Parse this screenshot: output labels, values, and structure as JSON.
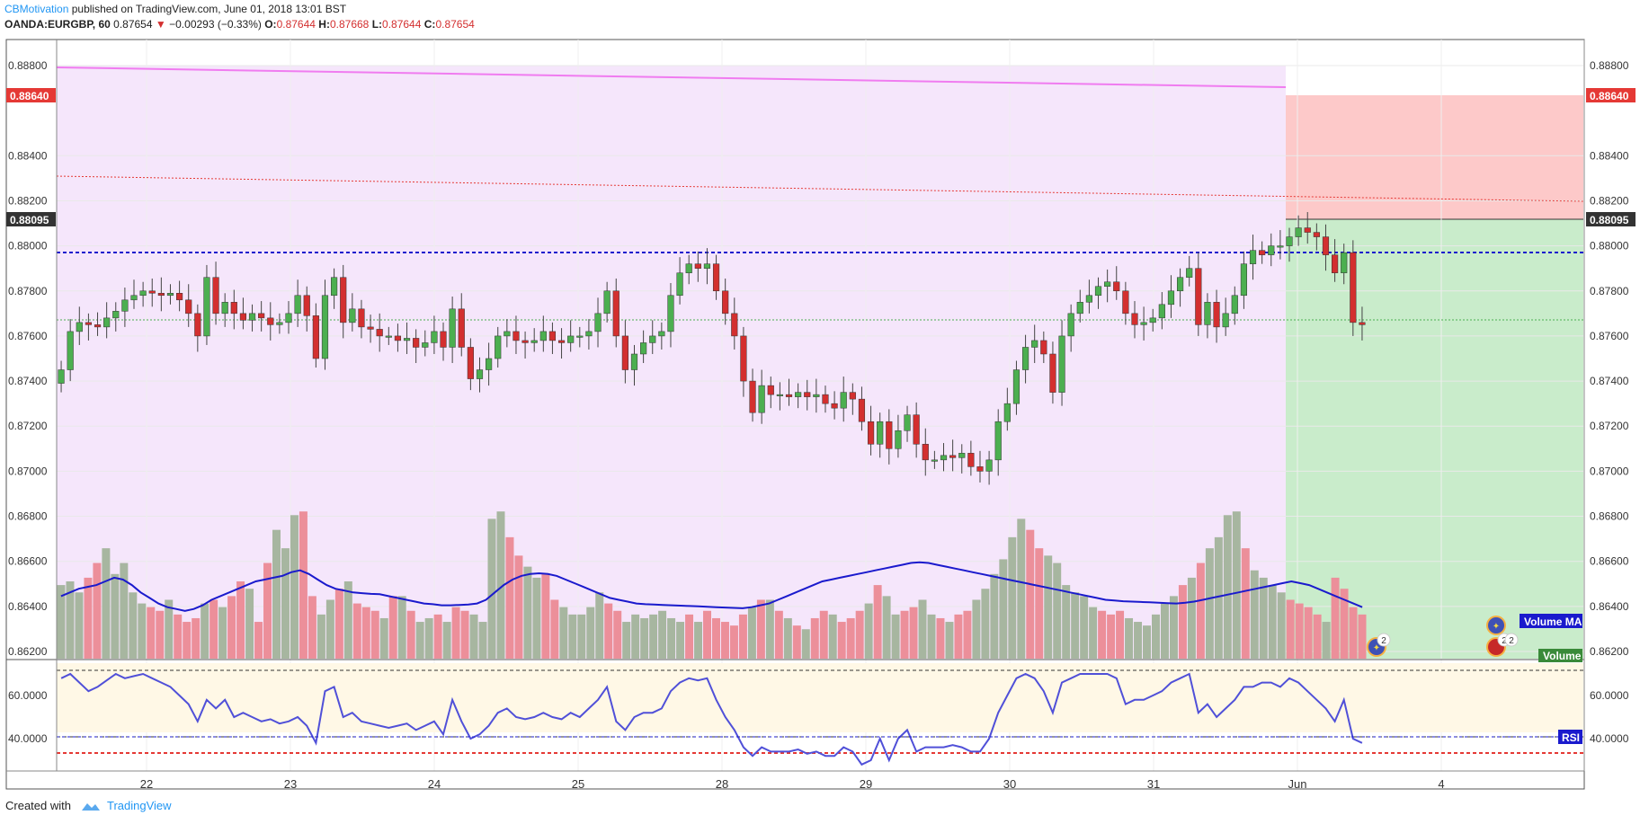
{
  "header": {
    "publisher": "CBMotivation",
    "published_text": "published on TradingView.com, June 01, 2018 13:01 BST",
    "symbol": "OANDA:EURGBP, 60",
    "last": "0.87654",
    "change": "−0.00293 (−0.33%)",
    "o_label": "O:",
    "o": "0.87644",
    "h_label": "H:",
    "h": "0.87668",
    "l_label": "L:",
    "l": "0.87644",
    "c_label": "C:",
    "c": "0.87654"
  },
  "price_tags": {
    "stop": "0.88640",
    "entry": "0.88095"
  },
  "indicator_labels": {
    "volume_ma": "Volume MA",
    "volume": "Volume",
    "rsi": "RSI"
  },
  "event_badges": [
    "2",
    "2",
    "2"
  ],
  "footer": {
    "created_with": "Created with",
    "brand": "TradingView"
  },
  "colors": {
    "up": "#4caf50",
    "down": "#d32f2f",
    "ma": "#1a1acd",
    "rsi": "#5050d8",
    "zone": "#f5e6fb",
    "stop": "#fdc9c9",
    "target": "#c9eccb"
  },
  "chart_data": [
    {
      "type": "candlestick",
      "symbol": "OANDA:EURGBP",
      "interval": "60",
      "x_ticks": [
        "22",
        "23",
        "24",
        "25",
        "28",
        "29",
        "30",
        "31",
        "Jun",
        "4"
      ],
      "y_ticks": [
        "0.86200",
        "0.86400",
        "0.86600",
        "0.86800",
        "0.87000",
        "0.87200",
        "0.87400",
        "0.87600",
        "0.87800",
        "0.88000",
        "0.88200",
        "0.88400",
        "0.88640",
        "0.88800"
      ],
      "ylim": [
        0.8615,
        0.8892
      ],
      "session_index_of_tick": [
        4,
        14,
        24,
        34,
        44,
        54,
        64,
        74,
        84,
        94
      ],
      "closes": [
        0.8745,
        0.8762,
        0.8766,
        0.8765,
        0.8764,
        0.8768,
        0.8771,
        0.8776,
        0.8778,
        0.878,
        0.8779,
        0.8778,
        0.8779,
        0.8776,
        0.877,
        0.876,
        0.8786,
        0.877,
        0.8775,
        0.877,
        0.8767,
        0.877,
        0.8768,
        0.8765,
        0.8766,
        0.877,
        0.8778,
        0.8769,
        0.875,
        0.8778,
        0.8786,
        0.8766,
        0.8772,
        0.8764,
        0.8763,
        0.876,
        0.876,
        0.8758,
        0.8759,
        0.8755,
        0.8757,
        0.8762,
        0.8755,
        0.8772,
        0.8755,
        0.8741,
        0.8745,
        0.875,
        0.876,
        0.8762,
        0.8758,
        0.8757,
        0.8758,
        0.8762,
        0.8758,
        0.8757,
        0.876,
        0.876,
        0.8762,
        0.877,
        0.878,
        0.876,
        0.8745,
        0.8752,
        0.8757,
        0.876,
        0.8762,
        0.8778,
        0.8788,
        0.8792,
        0.879,
        0.8792,
        0.878,
        0.877,
        0.876,
        0.874,
        0.8726,
        0.8738,
        0.8734,
        0.8734,
        0.8733,
        0.8735,
        0.8733,
        0.8734,
        0.873,
        0.8728,
        0.8735,
        0.8732,
        0.8722,
        0.8712,
        0.8722,
        0.871,
        0.8718,
        0.8725,
        0.8712,
        0.8705,
        0.8705,
        0.8707,
        0.8706,
        0.8708,
        0.8702,
        0.87,
        0.8705,
        0.8722,
        0.873,
        0.8745,
        0.8755,
        0.8758,
        0.8752,
        0.8735,
        0.876,
        0.877,
        0.8775,
        0.8778,
        0.8782,
        0.8784,
        0.878,
        0.877,
        0.8765,
        0.8766,
        0.8768,
        0.8774,
        0.878,
        0.8786,
        0.879,
        0.8765,
        0.8775,
        0.8764,
        0.877,
        0.8778,
        0.8792,
        0.8798,
        0.8796,
        0.88,
        0.88,
        0.8804,
        0.8808,
        0.8806,
        0.8804,
        0.8796,
        0.8788,
        0.8797,
        0.8766,
        0.8765
      ]
    },
    {
      "type": "bar",
      "name": "Volume",
      "values": [
        200,
        210,
        180,
        220,
        260,
        300,
        230,
        260,
        180,
        150,
        140,
        130,
        160,
        120,
        100,
        110,
        150,
        160,
        140,
        170,
        210,
        190,
        100,
        260,
        350,
        300,
        390,
        400,
        170,
        120,
        160,
        190,
        210,
        150,
        140,
        130,
        110,
        170,
        170,
        130,
        100,
        110,
        120,
        100,
        140,
        130,
        120,
        100,
        380,
        400,
        330,
        280,
        250,
        220,
        230,
        160,
        140,
        120,
        120,
        140,
        180,
        150,
        130,
        100,
        120,
        110,
        120,
        130,
        110,
        100,
        120,
        100,
        130,
        110,
        100,
        90,
        120,
        140,
        160,
        160,
        130,
        110,
        90,
        80,
        110,
        130,
        120,
        100,
        110,
        130,
        150,
        200,
        170,
        120,
        130,
        140,
        160,
        120,
        110,
        100,
        120,
        130,
        160,
        190,
        230,
        270,
        330,
        380,
        350,
        300,
        280,
        260,
        200,
        180,
        170,
        140,
        130,
        120,
        130,
        110,
        100,
        90,
        120,
        150,
        170,
        200,
        220,
        260,
        300,
        330,
        390,
        400,
        300,
        240,
        220,
        200,
        180,
        160,
        150,
        140,
        120,
        100,
        220,
        190,
        140,
        120
      ],
      "ma_values": [
        170,
        180,
        190,
        195,
        200,
        210,
        220,
        215,
        200,
        180,
        165,
        150,
        140,
        135,
        130,
        135,
        145,
        160,
        170,
        180,
        190,
        200,
        210,
        215,
        220,
        225,
        235,
        240,
        230,
        215,
        200,
        190,
        185,
        180,
        178,
        176,
        175,
        170,
        165,
        160,
        155,
        150,
        148,
        145,
        145,
        146,
        147,
        150,
        160,
        180,
        200,
        215,
        225,
        230,
        232,
        230,
        225,
        215,
        205,
        195,
        185,
        175,
        165,
        160,
        155,
        150,
        148,
        147,
        146,
        145,
        144,
        143,
        142,
        141,
        140,
        139,
        138,
        137,
        140,
        145,
        150,
        160,
        170,
        180,
        190,
        200,
        210,
        215,
        220,
        225,
        230,
        235,
        240,
        245,
        250,
        255,
        260,
        262,
        260,
        255,
        250,
        245,
        240,
        235,
        230,
        225,
        220,
        215,
        210,
        205,
        200,
        195,
        190,
        185,
        180,
        175,
        170,
        165,
        160,
        158,
        156,
        155,
        154,
        153,
        152,
        151,
        150,
        152,
        155,
        160,
        165,
        170,
        175,
        180,
        185,
        190,
        195,
        200,
        205,
        210,
        205,
        200,
        190,
        180,
        170,
        160,
        150,
        140
      ]
    },
    {
      "type": "line",
      "name": "RSI",
      "y_ticks": [
        "40.0000",
        "60.0000"
      ],
      "levels": [
        70,
        30
      ],
      "values": [
        68,
        70,
        66,
        62,
        64,
        67,
        70,
        68,
        69,
        70,
        68,
        66,
        64,
        60,
        56,
        48,
        58,
        54,
        58,
        50,
        52,
        50,
        48,
        49,
        47,
        48,
        50,
        46,
        38,
        62,
        64,
        50,
        52,
        48,
        47,
        46,
        45,
        46,
        47,
        44,
        46,
        48,
        42,
        58,
        48,
        40,
        42,
        46,
        52,
        54,
        50,
        49,
        50,
        52,
        50,
        49,
        52,
        50,
        54,
        58,
        64,
        48,
        44,
        50,
        52,
        52,
        54,
        62,
        66,
        68,
        67,
        68,
        58,
        50,
        44,
        36,
        32,
        36,
        34,
        34,
        34,
        35,
        33,
        34,
        32,
        32,
        36,
        34,
        28,
        30,
        40,
        30,
        40,
        44,
        34,
        36,
        36,
        36,
        37,
        36,
        34,
        34,
        40,
        52,
        60,
        68,
        70,
        68,
        62,
        52,
        66,
        68,
        70,
        70,
        70,
        70,
        68,
        56,
        58,
        58,
        60,
        62,
        66,
        68,
        70,
        52,
        56,
        50,
        54,
        58,
        64,
        64,
        66,
        66,
        64,
        68,
        66,
        62,
        58,
        54,
        48,
        58,
        40,
        38
      ]
    }
  ]
}
